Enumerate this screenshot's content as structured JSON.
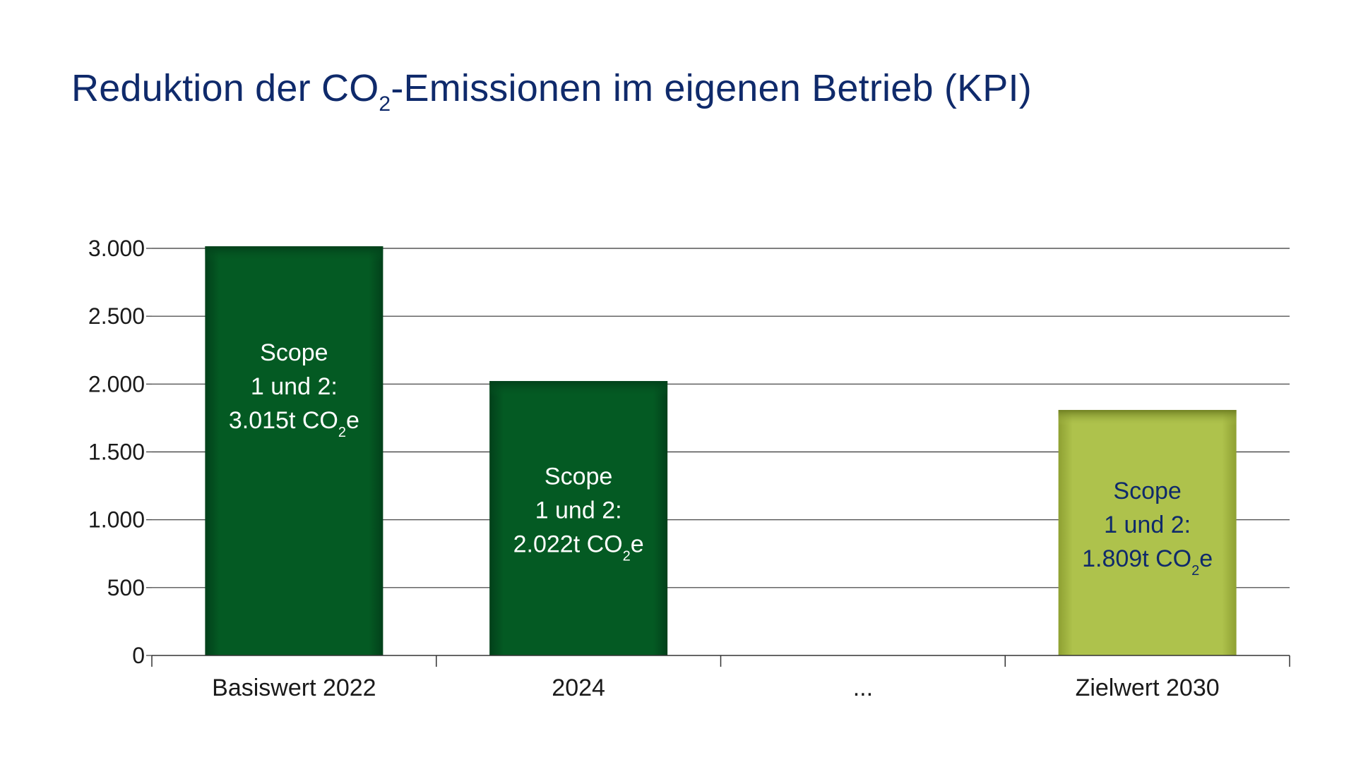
{
  "chart_data": {
    "type": "bar",
    "title": {
      "main": "Reduktion der CO",
      "sub": "2",
      "rest": "-Emissionen im eigenen Betrieb (KPI)"
    },
    "xlabel": "",
    "ylabel": "",
    "categories": [
      "Basiswert 2022",
      "2024",
      "...",
      "Zielwert 2030"
    ],
    "values": [
      3015,
      2022,
      null,
      1809
    ],
    "ylim": [
      0,
      3000
    ],
    "yticks": [
      0,
      500,
      1000,
      1500,
      2000,
      2500,
      3000
    ],
    "ytick_labels": [
      "0",
      "500",
      "1.000",
      "1.500",
      "2.000",
      "2.500",
      "3.000"
    ],
    "grid": true,
    "legend": "none",
    "bar_labels": [
      {
        "line1": "Scope",
        "line2": "1 und 2:",
        "line3_main": "3.015t CO",
        "line3_sub": "2",
        "line3_end": "e"
      },
      {
        "line1": "Scope",
        "line2": "1 und 2:",
        "line3_main": "2.022t CO",
        "line3_sub": "2",
        "line3_end": "e"
      },
      null,
      {
        "line1": "Scope",
        "line2": "1 und 2:",
        "line3_main": "1.809t CO",
        "line3_sub": "2",
        "line3_end": "e"
      }
    ],
    "colors": {
      "actual": "#045a23",
      "actual_edge": "#02401a",
      "target": "#aec24c",
      "target_edge": "#8ea032",
      "label_on_actual": "#ffffff",
      "label_on_target": "#0f2a6b",
      "title": "#0f2a6b",
      "grid": "#333333"
    },
    "bar_styles": [
      "actual",
      "actual",
      null,
      "target"
    ]
  }
}
